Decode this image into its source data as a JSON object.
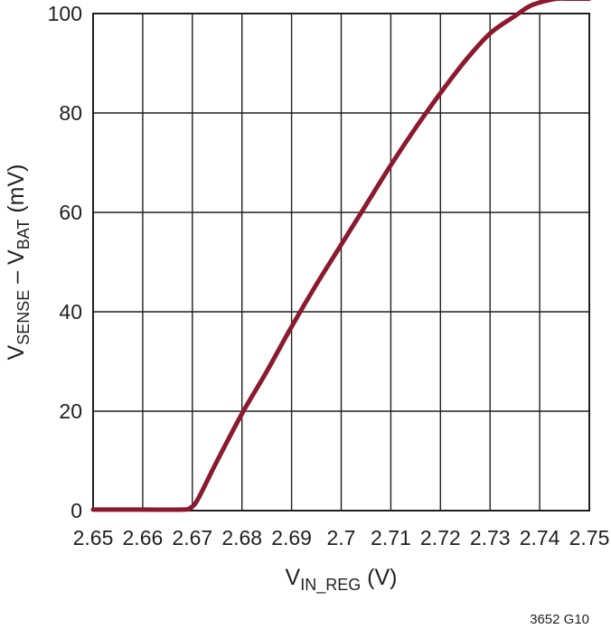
{
  "chart_data": {
    "type": "line",
    "title": "",
    "xlabel": {
      "main": "V",
      "sub": "IN_REG",
      "unit": " (V)"
    },
    "ylabel": {
      "parts": [
        {
          "text": "V",
          "sub": false
        },
        {
          "text": "SENSE",
          "sub": true
        },
        {
          "text": " – V",
          "sub": false
        },
        {
          "text": "BAT",
          "sub": true
        },
        {
          "text": " (mV)",
          "sub": false
        }
      ]
    },
    "xlim": [
      2.65,
      2.75
    ],
    "ylim": [
      0,
      100
    ],
    "x_ticks": [
      2.65,
      2.66,
      2.67,
      2.68,
      2.69,
      2.7,
      2.71,
      2.72,
      2.73,
      2.74,
      2.75
    ],
    "x_tick_labels": [
      "2.65",
      "2.66",
      "2.67",
      "2.68",
      "2.69",
      "2.7",
      "2.71",
      "2.72",
      "2.73",
      "2.74",
      "2.75"
    ],
    "y_ticks": [
      0,
      20,
      40,
      60,
      80,
      100
    ],
    "y_tick_labels": [
      "0",
      "20",
      "40",
      "60",
      "80",
      "100"
    ],
    "grid": true,
    "series": [
      {
        "color": "#8b1a2f",
        "x": [
          2.65,
          2.66,
          2.668,
          2.6695,
          2.6705,
          2.6715,
          2.673,
          2.675,
          2.68,
          2.685,
          2.69,
          2.695,
          2.7,
          2.705,
          2.71,
          2.715,
          2.72,
          2.725,
          2.73,
          2.735,
          2.738,
          2.741,
          2.7435,
          2.746,
          2.75
        ],
        "y": [
          0.2,
          0.2,
          0.2,
          0.5,
          1.3,
          3.0,
          6.0,
          10.0,
          19.5,
          28.0,
          37.0,
          45.5,
          53.5,
          61.5,
          69.5,
          77.0,
          84.0,
          90.5,
          96.0,
          99.5,
          101.5,
          102.5,
          103.0,
          103.0,
          103.0
        ]
      }
    ]
  },
  "figure_id": "3652 G10"
}
